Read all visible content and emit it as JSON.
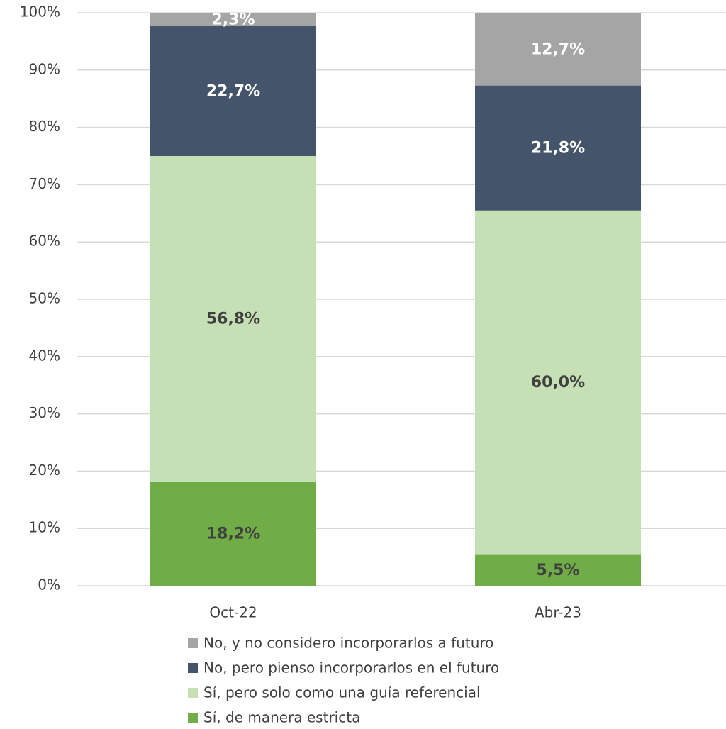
{
  "chart_data": {
    "type": "stacked_bar",
    "categories": [
      "Oct-22",
      "Abr-23"
    ],
    "series": [
      {
        "name": "Sí, de manera estricta",
        "color": "#70ad47",
        "label_color": "#404040",
        "values": [
          18.2,
          5.5
        ],
        "value_labels": [
          "18,2%",
          "5,5%"
        ]
      },
      {
        "name": "Sí, pero solo como una guía referencial",
        "color": "#c5e0b4",
        "label_color": "#404040",
        "values": [
          56.8,
          60.0
        ],
        "value_labels": [
          "56,8%",
          "60,0%"
        ]
      },
      {
        "name": "No, pero pienso incorporarlos en el futuro",
        "color": "#44546a",
        "label_color": "#ffffff",
        "values": [
          22.7,
          21.8
        ],
        "value_labels": [
          "22,7%",
          "21,8%"
        ]
      },
      {
        "name": "No, y no considero incorporarlos a futuro",
        "color": "#a5a5a5",
        "label_color": "#ffffff",
        "values": [
          2.3,
          12.7
        ],
        "value_labels": [
          "2,3%",
          "12,7%"
        ]
      }
    ],
    "ylim": [
      0,
      100
    ],
    "yticks": [
      {
        "value": 0,
        "label": "0%"
      },
      {
        "value": 10,
        "label": "10%"
      },
      {
        "value": 20,
        "label": "20%"
      },
      {
        "value": 30,
        "label": "30%"
      },
      {
        "value": 40,
        "label": "40%"
      },
      {
        "value": 50,
        "label": "50%"
      },
      {
        "value": 60,
        "label": "60%"
      },
      {
        "value": 70,
        "label": "70%"
      },
      {
        "value": 80,
        "label": "80%"
      },
      {
        "value": 90,
        "label": "90%"
      },
      {
        "value": 100,
        "label": "100%"
      }
    ],
    "grid": true,
    "legend": "bottom"
  }
}
